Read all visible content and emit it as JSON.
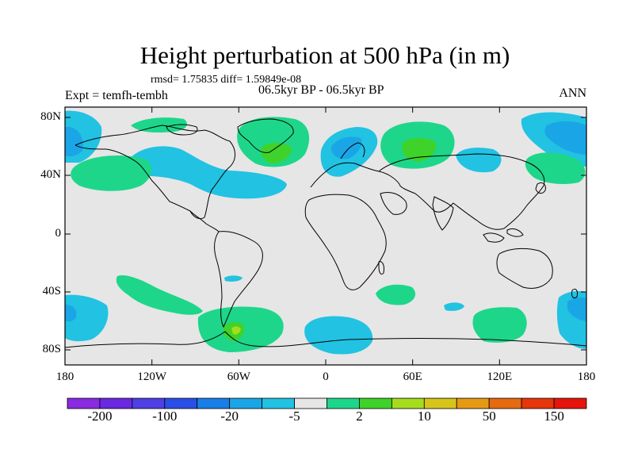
{
  "title": "Height perturbation at 500 hPa (in m)",
  "stats": "rmsd= 1.75835 diff= 1.59849e-08",
  "expt": "Expt = temfh-tembh",
  "period": "06.5kyr BP - 06.5kyr BP",
  "season": "ANN",
  "map": {
    "lat_ticks": [
      "80N",
      "40N",
      "0",
      "40S",
      "80S"
    ],
    "lon_ticks": [
      "180",
      "120W",
      "60W",
      "0",
      "60E",
      "120E",
      "180"
    ],
    "background_color": "#e6e6e6"
  },
  "colorbar": {
    "colors": [
      "#8a2be2",
      "#6a28e0",
      "#4f3fe4",
      "#2a4fe6",
      "#1a7ee8",
      "#1aa6e6",
      "#22c2e2",
      "#e6e6e6",
      "#1ed68a",
      "#3fd22a",
      "#a6dc1e",
      "#d6c41a",
      "#e69a14",
      "#e66a10",
      "#e6360c",
      "#e6140c"
    ],
    "labels": [
      "-200",
      "-100",
      "-20",
      "-5",
      "2",
      "10",
      "50",
      "150"
    ]
  },
  "legend_colors": {
    "neg_light": "#22c2e2",
    "neg_mid": "#1aa6e6",
    "neg_dark": "#1a7ee8",
    "pos_light": "#1ed68a",
    "pos_mid": "#3fd22a",
    "pos_yellow": "#a6dc1e"
  }
}
